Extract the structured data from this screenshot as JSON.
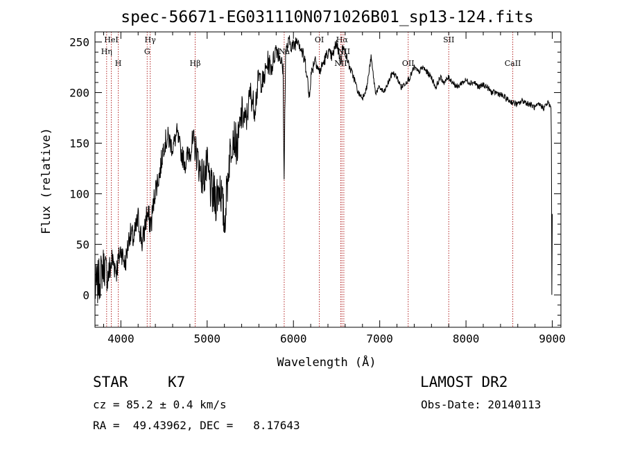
{
  "chart_data": {
    "type": "line",
    "title": "spec-56671-EG031110N071026B01_sp13-124.fits",
    "xlabel": "Wavelength (Å)",
    "ylabel": "Flux (relative)",
    "xlim": [
      3700,
      9100
    ],
    "ylim": [
      -32,
      260
    ],
    "x_ticks": [
      4000,
      5000,
      6000,
      7000,
      8000,
      9000
    ],
    "y_ticks": [
      0,
      50,
      100,
      150,
      200,
      250
    ],
    "x_tick_labels": [
      "4000",
      "5000",
      "6000",
      "7000",
      "8000",
      "9000"
    ],
    "y_tick_labels": [
      "0",
      "50",
      "100",
      "150",
      "200",
      "250"
    ],
    "grid": false,
    "line_color": "#000000",
    "marker_color": "#b22222",
    "spectrum": {
      "x": [
        3700,
        3750,
        3800,
        3850,
        3900,
        3950,
        4000,
        4050,
        4100,
        4150,
        4200,
        4250,
        4300,
        4350,
        4400,
        4450,
        4500,
        4550,
        4600,
        4650,
        4700,
        4750,
        4800,
        4850,
        4900,
        4950,
        5000,
        5050,
        5100,
        5150,
        5200,
        5250,
        5300,
        5350,
        5400,
        5450,
        5500,
        5550,
        5600,
        5650,
        5700,
        5750,
        5800,
        5850,
        5880,
        5892,
        5900,
        5910,
        5950,
        6000,
        6050,
        6100,
        6150,
        6180,
        6200,
        6250,
        6300,
        6350,
        6400,
        6450,
        6500,
        6550,
        6563,
        6600,
        6650,
        6700,
        6750,
        6800,
        6850,
        6900,
        6950,
        7000,
        7050,
        7100,
        7150,
        7200,
        7250,
        7300,
        7350,
        7400,
        7450,
        7500,
        7550,
        7600,
        7650,
        7700,
        7750,
        7800,
        7850,
        7900,
        7950,
        8000,
        8050,
        8100,
        8150,
        8200,
        8250,
        8300,
        8350,
        8400,
        8450,
        8500,
        8550,
        8600,
        8650,
        8700,
        8750,
        8800,
        8850,
        8900,
        8950,
        8985,
        8990,
        8995,
        9000
      ],
      "y": [
        5,
        15,
        30,
        18,
        35,
        25,
        45,
        30,
        60,
        55,
        75,
        50,
        80,
        70,
        105,
        120,
        150,
        155,
        145,
        160,
        140,
        130,
        145,
        150,
        130,
        115,
        125,
        100,
        95,
        110,
        70,
        130,
        160,
        145,
        180,
        170,
        200,
        185,
        215,
        210,
        230,
        225,
        245,
        235,
        220,
        110,
        180,
        240,
        250,
        245,
        255,
        240,
        225,
        195,
        215,
        235,
        220,
        230,
        240,
        235,
        250,
        230,
        245,
        240,
        225,
        215,
        200,
        195,
        205,
        235,
        200,
        205,
        200,
        210,
        220,
        215,
        205,
        210,
        215,
        225,
        220,
        225,
        220,
        215,
        205,
        215,
        210,
        215,
        210,
        205,
        210,
        212,
        210,
        210,
        205,
        208,
        205,
        200,
        200,
        198,
        195,
        192,
        190,
        188,
        192,
        190,
        188,
        185,
        188,
        185,
        190,
        185,
        150,
        0,
        80
      ],
      "noise": [
        24,
        22,
        20,
        18,
        16,
        14,
        12,
        12,
        12,
        14,
        14,
        14,
        14,
        14,
        12,
        12,
        12,
        12,
        10,
        10,
        10,
        12,
        14,
        16,
        18,
        20,
        22,
        24,
        24,
        24,
        22,
        22,
        20,
        20,
        18,
        16,
        14,
        14,
        14,
        12,
        12,
        10,
        10,
        10,
        10,
        8,
        8,
        8,
        8,
        8,
        8,
        8,
        8,
        8,
        8,
        6,
        6,
        6,
        6,
        6,
        6,
        6,
        6,
        4,
        4,
        4,
        3,
        3,
        3,
        3,
        3,
        3,
        3,
        3,
        3,
        3,
        3,
        3,
        3,
        3,
        3,
        3,
        3,
        3,
        3,
        3,
        3,
        3,
        3,
        3,
        3,
        3,
        3,
        3,
        3,
        3,
        3,
        3,
        3,
        3,
        3,
        3,
        3,
        3,
        3,
        3,
        3,
        3,
        3,
        3,
        3,
        3,
        0,
        0,
        0
      ]
    },
    "lines": [
      {
        "label": "HeI",
        "x": 3889,
        "row": 0
      },
      {
        "label": "Hη",
        "x": 3835,
        "row": 1
      },
      {
        "label": "H",
        "x": 3970,
        "row": 2
      },
      {
        "label": "Hγ",
        "x": 4340,
        "row": 0
      },
      {
        "label": "G",
        "x": 4305,
        "row": 1
      },
      {
        "label": "Hβ",
        "x": 4861,
        "row": 2
      },
      {
        "label": "Na",
        "x": 5893,
        "row": 1
      },
      {
        "label": "OI",
        "x": 6300,
        "row": 0
      },
      {
        "label": "Hα",
        "x": 6563,
        "row": 0
      },
      {
        "label": "NII",
        "x": 6584,
        "row": 1
      },
      {
        "label": "NII",
        "x": 6548,
        "row": 2
      },
      {
        "label": "OII",
        "x": 7330,
        "row": 2
      },
      {
        "label": "SII",
        "x": 7800,
        "row": 0
      },
      {
        "label": "CaII",
        "x": 8542,
        "row": 2
      }
    ]
  },
  "info": {
    "class": "STAR",
    "subclass": "K7",
    "survey": "LAMOST DR2",
    "cz": "cz = 85.2 ± 0.4 km/s",
    "obs_date": "Obs-Date: 20140113",
    "radec": "RA =  49.43962, DEC =   8.17643"
  }
}
